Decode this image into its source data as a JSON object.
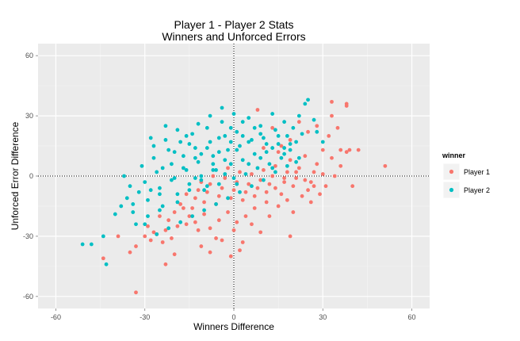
{
  "chart_data": {
    "type": "scatter",
    "title": "Player 1 - Player 2 Stats",
    "subtitle": "Winners and Unforced Errors",
    "xlabel": "Winners Difference",
    "ylabel": "Unforced Error Difference",
    "xlim": [
      -66,
      66
    ],
    "ylim": [
      -66,
      66
    ],
    "x_ticks": [
      -60,
      -30,
      0,
      30,
      60
    ],
    "y_ticks": [
      -60,
      -30,
      0,
      30,
      60
    ],
    "x_tick_labels": [
      "-60",
      "-30",
      "0",
      "30",
      "60"
    ],
    "y_tick_labels": [
      "-60",
      "-30",
      "0",
      "30",
      "60"
    ],
    "reference_lines": {
      "x": 0,
      "y": 0,
      "style": "dotted"
    },
    "grid": true,
    "panel_background": "#ebebeb",
    "legend": {
      "title": "winner",
      "position": "right"
    },
    "series": [
      {
        "name": "Player 1",
        "color": "#f8766d",
        "points": [
          [
            51,
            5
          ],
          [
            42,
            13
          ],
          [
            39,
            13
          ],
          [
            38,
            36
          ],
          [
            38,
            35
          ],
          [
            33,
            37
          ],
          [
            33,
            30
          ],
          [
            40,
            -5
          ],
          [
            35,
            24
          ],
          [
            32,
            20
          ],
          [
            30,
            13
          ],
          [
            28,
            6
          ],
          [
            27,
            2
          ],
          [
            26,
            -3
          ],
          [
            25,
            -7
          ],
          [
            24,
            10
          ],
          [
            22,
            4
          ],
          [
            21,
            -1
          ],
          [
            20,
            -5
          ],
          [
            19,
            8
          ],
          [
            18,
            2
          ],
          [
            17,
            -3
          ],
          [
            16,
            -9
          ],
          [
            15,
            12
          ],
          [
            14,
            5
          ],
          [
            13,
            0
          ],
          [
            12,
            -4
          ],
          [
            11,
            -8
          ],
          [
            10,
            3
          ],
          [
            9,
            -2
          ],
          [
            8,
            -6
          ],
          [
            7,
            -10
          ],
          [
            6,
            1
          ],
          [
            5,
            -4
          ],
          [
            4,
            -8
          ],
          [
            3,
            -12
          ],
          [
            2,
            2
          ],
          [
            1,
            -3
          ],
          [
            0,
            -7
          ],
          [
            -1,
            -11
          ],
          [
            -2,
            4
          ],
          [
            -3,
            -1
          ],
          [
            -4,
            -6
          ],
          [
            -5,
            -10
          ],
          [
            -6,
            -14
          ],
          [
            -7,
            0
          ],
          [
            -8,
            -4
          ],
          [
            -9,
            -8
          ],
          [
            -10,
            -13
          ],
          [
            -11,
            -3
          ],
          [
            -12,
            -7
          ],
          [
            -13,
            -11
          ],
          [
            -14,
            -16
          ],
          [
            -15,
            -20
          ],
          [
            -16,
            -9
          ],
          [
            -18,
            -14
          ],
          [
            -20,
            -18
          ],
          [
            -22,
            -22
          ],
          [
            -23,
            -27
          ],
          [
            -25,
            -20
          ],
          [
            -27,
            -28
          ],
          [
            -29,
            -25
          ],
          [
            -30,
            -30
          ],
          [
            -33,
            -35
          ],
          [
            -35,
            -38
          ],
          [
            -39,
            -30
          ],
          [
            -44,
            -41
          ],
          [
            -33,
            -58
          ],
          [
            -23,
            -44
          ],
          [
            -20,
            -39
          ],
          [
            -11,
            -35
          ],
          [
            -8,
            -38
          ],
          [
            -4,
            -32
          ],
          [
            0,
            -27
          ],
          [
            3,
            -33
          ],
          [
            6,
            -24
          ],
          [
            9,
            -28
          ],
          [
            12,
            -20
          ],
          [
            15,
            -15
          ],
          [
            18,
            -12
          ],
          [
            20,
            -18
          ],
          [
            23,
            -10
          ],
          [
            26,
            -13
          ],
          [
            29,
            -9
          ],
          [
            31,
            -5
          ],
          [
            34,
            0
          ],
          [
            36,
            5
          ],
          [
            28,
            25
          ],
          [
            25,
            22
          ],
          [
            22,
            27
          ],
          [
            19,
            18
          ],
          [
            16,
            15
          ],
          [
            13,
            24
          ],
          [
            10,
            14
          ],
          [
            8,
            33
          ],
          [
            -16,
            -24
          ],
          [
            -12,
            -27
          ],
          [
            -6,
            -31
          ],
          [
            -1,
            -40
          ],
          [
            2,
            -37
          ],
          [
            19,
            -30
          ],
          [
            7,
            -16
          ],
          [
            11,
            -13
          ],
          [
            14,
            -6
          ],
          [
            17,
            -1
          ],
          [
            21,
            2
          ],
          [
            24,
            -2
          ],
          [
            27,
            -5
          ],
          [
            30,
            1
          ],
          [
            33,
            9
          ],
          [
            36,
            13
          ],
          [
            38,
            12
          ],
          [
            4,
            -20
          ],
          [
            1,
            -23
          ],
          [
            -2,
            -18
          ],
          [
            -5,
            -22
          ],
          [
            -8,
            -26
          ],
          [
            -10,
            -19
          ],
          [
            -13,
            -23
          ],
          [
            -17,
            -16
          ],
          [
            -19,
            -25
          ],
          [
            -21,
            -31
          ],
          [
            -24,
            -33
          ],
          [
            -26,
            -29
          ],
          [
            -28,
            -32
          ]
        ]
      },
      {
        "name": "Player 2",
        "color": "#00bfc4",
        "points": [
          [
            -51,
            -34
          ],
          [
            -48,
            -34
          ],
          [
            -44,
            -30
          ],
          [
            -43,
            -44
          ],
          [
            -38,
            -15
          ],
          [
            -37,
            0
          ],
          [
            -36,
            -11
          ],
          [
            -34,
            -18
          ],
          [
            -32,
            -8
          ],
          [
            -31,
            5
          ],
          [
            -30,
            -3
          ],
          [
            -29,
            -12
          ],
          [
            -28,
            19
          ],
          [
            -27,
            9
          ],
          [
            -26,
            2
          ],
          [
            -25,
            -6
          ],
          [
            -24,
            -15
          ],
          [
            -23,
            25
          ],
          [
            -22,
            13
          ],
          [
            -21,
            6
          ],
          [
            -20,
            -1
          ],
          [
            -19,
            -9
          ],
          [
            -18,
            17
          ],
          [
            -17,
            10
          ],
          [
            -16,
            3
          ],
          [
            -15,
            -4
          ],
          [
            -14,
            21
          ],
          [
            -13,
            14
          ],
          [
            -12,
            7
          ],
          [
            -11,
            0
          ],
          [
            -10,
            -7
          ],
          [
            -9,
            24
          ],
          [
            -8,
            17
          ],
          [
            -7,
            10
          ],
          [
            -6,
            3
          ],
          [
            -5,
            -4
          ],
          [
            -4,
            27
          ],
          [
            -3,
            20
          ],
          [
            -2,
            13
          ],
          [
            -1,
            6
          ],
          [
            0,
            -1
          ],
          [
            1,
            22
          ],
          [
            2,
            15
          ],
          [
            3,
            8
          ],
          [
            4,
            1
          ],
          [
            5,
            29
          ],
          [
            6,
            18
          ],
          [
            7,
            11
          ],
          [
            8,
            4
          ],
          [
            9,
            25
          ],
          [
            10,
            19
          ],
          [
            11,
            12
          ],
          [
            12,
            6
          ],
          [
            13,
            31
          ],
          [
            14,
            23
          ],
          [
            15,
            16
          ],
          [
            16,
            9
          ],
          [
            17,
            27
          ],
          [
            18,
            20
          ],
          [
            19,
            13
          ],
          [
            20,
            24
          ],
          [
            21,
            17
          ],
          [
            22,
            30
          ],
          [
            24,
            36
          ],
          [
            25,
            38
          ],
          [
            27,
            28
          ],
          [
            28,
            22
          ],
          [
            30,
            17
          ],
          [
            22,
            9
          ],
          [
            18,
            5
          ],
          [
            14,
            2
          ],
          [
            10,
            -2
          ],
          [
            6,
            -5
          ],
          [
            2,
            -8
          ],
          [
            -2,
            -11
          ],
          [
            -6,
            -14
          ],
          [
            -10,
            -17
          ],
          [
            -14,
            -20
          ],
          [
            -18,
            -23
          ],
          [
            -22,
            -26
          ],
          [
            -26,
            -29
          ],
          [
            -30,
            -24
          ],
          [
            -34,
            -14
          ],
          [
            -28,
            -7
          ],
          [
            -24,
            4
          ],
          [
            -20,
            12
          ],
          [
            -16,
            20
          ],
          [
            -12,
            26
          ],
          [
            -8,
            30
          ],
          [
            -4,
            34
          ],
          [
            0,
            31
          ],
          [
            3,
            27
          ],
          [
            -1,
            24
          ],
          [
            -5,
            19
          ],
          [
            -9,
            14
          ],
          [
            -13,
            9
          ],
          [
            -17,
            4
          ],
          [
            -21,
            -2
          ],
          [
            -25,
            -9
          ],
          [
            -19,
            -13
          ],
          [
            -15,
            -7
          ],
          [
            -11,
            -2
          ],
          [
            -7,
            3
          ],
          [
            -3,
            8
          ],
          [
            1,
            13
          ],
          [
            5,
            17
          ],
          [
            9,
            21
          ],
          [
            13,
            14
          ],
          [
            17,
            11
          ],
          [
            21,
            7
          ],
          [
            -27,
            15
          ],
          [
            -23,
            18
          ],
          [
            -19,
            23
          ],
          [
            -15,
            16
          ],
          [
            -11,
            11
          ],
          [
            -7,
            6
          ],
          [
            -3,
            1
          ],
          [
            1,
            -4
          ],
          [
            5,
            6
          ],
          [
            9,
            9
          ],
          [
            13,
            4
          ],
          [
            17,
            14
          ],
          [
            -40,
            -19
          ],
          [
            -35,
            -5
          ],
          [
            -33,
            -24
          ],
          [
            -29,
            -20
          ],
          [
            -25,
            -17
          ],
          [
            -13,
            -1
          ],
          [
            -9,
            -5
          ],
          [
            -5,
            12
          ],
          [
            -1,
            17
          ],
          [
            3,
            20
          ],
          [
            7,
            24
          ],
          [
            11,
            16
          ],
          [
            15,
            20
          ],
          [
            19,
            16
          ],
          [
            23,
            21
          ]
        ]
      }
    ]
  }
}
